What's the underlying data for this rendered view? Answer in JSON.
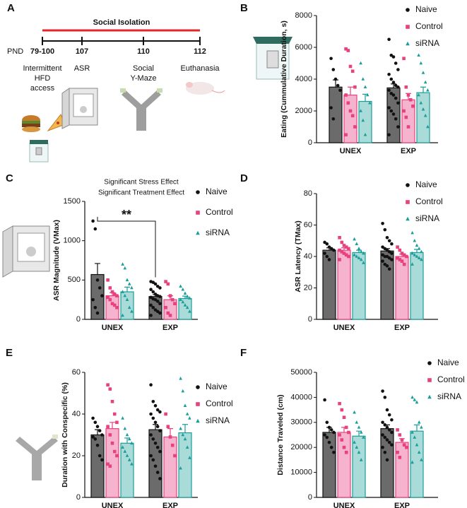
{
  "panel_a": {
    "label": "A",
    "bar_title": "Social Isolation",
    "axis_label": "PND",
    "timepoints": [
      "79-100",
      "107",
      "110",
      "112"
    ],
    "events": [
      [
        "Intermittent",
        "HFD",
        "access"
      ],
      [
        "ASR"
      ],
      [
        "Social",
        "Y-Maze"
      ],
      [
        "Euthanasia"
      ]
    ]
  },
  "chart_data": [
    {
      "type": "bar",
      "panel_label": "B",
      "ylabel": "Eating (Cummulative Duration, s)",
      "categories": [
        "UNEX",
        "EXP"
      ],
      "ylim": [
        0,
        8000
      ],
      "yticks": [
        0,
        2000,
        4000,
        6000,
        8000
      ],
      "series": [
        {
          "name": "Naive",
          "marker": "circle",
          "color": "#111111",
          "fill": "#6b6b6b",
          "values": [
            3500,
            3450
          ],
          "errors": [
            450,
            250
          ],
          "points": [
            [
              5300,
              4600,
              4000,
              3600,
              3300,
              2200,
              1500
            ],
            [
              6500,
              5500,
              5400,
              5000,
              4600,
              4300,
              4000,
              3800,
              3600,
              3500,
              3300,
              3100,
              3000,
              2800,
              2500,
              2200,
              2000,
              1800,
              1500,
              1000,
              500
            ]
          ]
        },
        {
          "name": "Control",
          "marker": "square",
          "color": "#e8417f",
          "fill": "#f6b3cd",
          "values": [
            3000,
            2700
          ],
          "errors": [
            500,
            400
          ],
          "points": [
            [
              5900,
              5800,
              4800,
              4500,
              3500,
              3000,
              2500,
              2000,
              1700,
              1000,
              500
            ],
            [
              5300,
              3500,
              3000,
              2700,
              2300,
              2000,
              1600,
              1000
            ]
          ]
        },
        {
          "name": "siRNA",
          "marker": "triangle",
          "color": "#1a9e9a",
          "fill": "#a9dbd9",
          "values": [
            2600,
            3150
          ],
          "errors": [
            450,
            350
          ],
          "points": [
            [
              5000,
              4000,
              3500,
              3000,
              2500,
              2000,
              1400,
              500
            ],
            [
              5500,
              5000,
              4400,
              3800,
              3300,
              3000,
              2500,
              2100,
              1700,
              1000
            ]
          ]
        }
      ]
    },
    {
      "type": "bar",
      "panel_label": "C",
      "ylabel": "ASR Magnitude (VMax)",
      "annotations": [
        "Significant Stress Effect",
        "Significant Treatment Effect"
      ],
      "significance": "**",
      "categories": [
        "UNEX",
        "EXP"
      ],
      "ylim": [
        0,
        1500
      ],
      "yticks": [
        0,
        500,
        1000,
        1500
      ],
      "series": [
        {
          "name": "Naive",
          "marker": "circle",
          "color": "#111111",
          "fill": "#6b6b6b",
          "values": [
            570,
            290
          ],
          "errors": [
            140,
            25
          ],
          "points": [
            [
              1250,
              1150,
              500,
              400,
              300,
              250,
              150,
              80
            ],
            [
              480,
              470,
              450,
              420,
              400,
              380,
              350,
              320,
              300,
              290,
              280,
              260,
              250,
              230,
              200,
              180,
              150,
              120,
              100,
              80,
              50
            ]
          ]
        },
        {
          "name": "Control",
          "marker": "square",
          "color": "#e8417f",
          "fill": "#f6b3cd",
          "values": [
            300,
            250
          ],
          "errors": [
            40,
            50
          ],
          "points": [
            [
              500,
              400,
              350,
              320,
              300,
              280,
              250,
              200,
              180,
              150
            ],
            [
              480,
              450,
              300,
              250,
              200,
              150,
              80,
              50
            ]
          ]
        },
        {
          "name": "siRNA",
          "marker": "triangle",
          "color": "#1a9e9a",
          "fill": "#a9dbd9",
          "values": [
            350,
            265
          ],
          "errors": [
            60,
            30
          ],
          "points": [
            [
              700,
              650,
              500,
              450,
              400,
              350,
              300,
              250,
              150,
              100,
              50
            ],
            [
              420,
              380,
              330,
              290,
              270,
              250,
              220,
              180,
              150,
              100
            ]
          ]
        }
      ]
    },
    {
      "type": "bar",
      "panel_label": "D",
      "ylabel": "ASR Latency (TMax)",
      "categories": [
        "UNEX",
        "EXP"
      ],
      "ylim": [
        0,
        80
      ],
      "yticks": [
        0,
        20,
        40,
        60,
        80
      ],
      "series": [
        {
          "name": "Naive",
          "marker": "circle",
          "color": "#111111",
          "fill": "#6b6b6b",
          "values": [
            44,
            43.5
          ],
          "errors": [
            1.5,
            1.5
          ],
          "points": [
            [
              49,
              48,
              46,
              45,
              44,
              42,
              40,
              38
            ],
            [
              61,
              57,
              52,
              50,
              48,
              46,
              45,
              44,
              43,
              42,
              41,
              40,
              40,
              39,
              38,
              37,
              35,
              34,
              32
            ]
          ]
        },
        {
          "name": "Control",
          "marker": "square",
          "color": "#e8417f",
          "fill": "#f6b3cd",
          "values": [
            44,
            40
          ],
          "errors": [
            1.5,
            1.5
          ],
          "points": [
            [
              52,
              49,
              47,
              46,
              45,
              44,
              43,
              42,
              41,
              40,
              38
            ],
            [
              46,
              44,
              42,
              41,
              40,
              39,
              38,
              37,
              35
            ]
          ]
        },
        {
          "name": "siRNA",
          "marker": "triangle",
          "color": "#1a9e9a",
          "fill": "#a9dbd9",
          "values": [
            42.5,
            42.5
          ],
          "errors": [
            1.5,
            2
          ],
          "points": [
            [
              51,
              48,
              45,
              43,
              42,
              41,
              40,
              39,
              38,
              36
            ],
            [
              55,
              50,
              47,
              45,
              43,
              42,
              41,
              40,
              39,
              38,
              35
            ]
          ]
        }
      ]
    },
    {
      "type": "bar",
      "panel_label": "E",
      "ylabel": "Duration with Conspecific (%)",
      "categories": [
        "UNEX",
        "EXP"
      ],
      "ylim": [
        0,
        60
      ],
      "yticks": [
        0,
        20,
        40,
        60
      ],
      "series": [
        {
          "name": "Naive",
          "marker": "circle",
          "color": "#111111",
          "fill": "#6b6b6b",
          "values": [
            30,
            32.5
          ],
          "errors": [
            2.5,
            2.5
          ],
          "points": [
            [
              38,
              36,
              34,
              32,
              30,
              29,
              28,
              25,
              20,
              18
            ],
            [
              54,
              46,
              44,
              42,
              41,
              40,
              38,
              36,
              34,
              32,
              30,
              28,
              26,
              24,
              22,
              20,
              18,
              15,
              12,
              9
            ]
          ]
        },
        {
          "name": "Control",
          "marker": "square",
          "color": "#e8417f",
          "fill": "#f6b3cd",
          "values": [
            33,
            29
          ],
          "errors": [
            3,
            4
          ],
          "points": [
            [
              54,
              52,
              46,
              40,
              36,
              34,
              30,
              26,
              22,
              20,
              16,
              15
            ],
            [
              40,
              34,
              29,
              25,
              20
            ]
          ]
        },
        {
          "name": "siRNA",
          "marker": "triangle",
          "color": "#1a9e9a",
          "fill": "#a9dbd9",
          "values": [
            26,
            31
          ],
          "errors": [
            2.5,
            4
          ],
          "points": [
            [
              38,
              33,
              30,
              28,
              26,
              24,
              22,
              20,
              18,
              16
            ],
            [
              57,
              51,
              44,
              40,
              38,
              33,
              30,
              28,
              24,
              19,
              14
            ]
          ]
        }
      ]
    },
    {
      "type": "bar",
      "panel_label": "F",
      "ylabel": "Distance Traveled (cm)",
      "categories": [
        "UNEX",
        "EXP"
      ],
      "ylim": [
        0,
        50000
      ],
      "yticks": [
        0,
        10000,
        20000,
        30000,
        40000,
        50000
      ],
      "series": [
        {
          "name": "Naive",
          "marker": "circle",
          "color": "#111111",
          "fill": "#6b6b6b",
          "values": [
            26000,
            27500
          ],
          "errors": [
            2000,
            1500
          ],
          "points": [
            [
              39000,
              30000,
              28000,
              27000,
              26000,
              25000,
              24000,
              22000,
              20000,
              18000
            ],
            [
              42500,
              40000,
              35000,
              33000,
              31000,
              30000,
              29000,
              28000,
              27000,
              26000,
              25000,
              24000,
              23000,
              22000,
              21000,
              20000,
              18000,
              15000
            ]
          ]
        },
        {
          "name": "Control",
          "marker": "square",
          "color": "#e8417f",
          "fill": "#f6b3cd",
          "values": [
            26000,
            22000
          ],
          "errors": [
            2000,
            1500
          ],
          "points": [
            [
              37500,
              35000,
              32000,
              28000,
              26000,
              25000,
              23000,
              20000,
              18000
            ],
            [
              27000,
              25000,
              23000,
              21000,
              20000,
              18000,
              16000
            ]
          ]
        },
        {
          "name": "siRNA",
          "marker": "triangle",
          "color": "#1a9e9a",
          "fill": "#a9dbd9",
          "values": [
            24500,
            26500
          ],
          "errors": [
            2000,
            2500
          ],
          "points": [
            [
              34000,
              30000,
              28000,
              26000,
              24000,
              22000,
              20000,
              18000,
              15000
            ],
            [
              40000,
              39000,
              38000,
              30000,
              28000,
              26000,
              24000,
              21000,
              18000,
              15000,
              14000
            ]
          ]
        }
      ]
    }
  ]
}
